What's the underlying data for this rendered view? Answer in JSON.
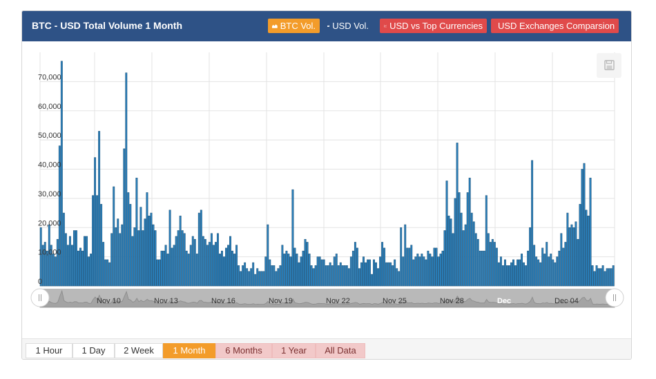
{
  "panel": {
    "title": "BTC - USD Total Volume 1 Month",
    "header_buttons": [
      {
        "label": "BTC Vol.",
        "icon": "area-chart-icon",
        "color": "#f39c2a"
      },
      {
        "label": "USD Vol.",
        "icon": "area-chart-icon",
        "color": "transparent"
      },
      {
        "label": "USD vs Top Currencies",
        "icon": "line-chart-icon",
        "color": "#e04a4a"
      },
      {
        "label": "USD Exchanges Comparsion",
        "icon": "bar-chart-icon",
        "color": "#e04a4a"
      }
    ]
  },
  "range_buttons": [
    "1 Hour",
    "1 Day",
    "2 Week",
    "1 Month",
    "6 Months",
    "1 Year",
    "All Data"
  ],
  "active_range": "1 Month",
  "colors": {
    "header": "#2e5286",
    "bar_fill": "#2a7fba",
    "bar_stroke": "#1d4f73",
    "active": "#f39c2a",
    "red": "#e04a4a",
    "pink": "#f2c9c9"
  },
  "chart_data": {
    "type": "bar",
    "title": "",
    "xlabel": "",
    "ylabel": "",
    "ylim": [
      0,
      80000
    ],
    "yticks": [
      0,
      10000,
      20000,
      30000,
      40000,
      50000,
      60000,
      70000
    ],
    "ytick_labels": [
      "0",
      "10,000",
      "20,000",
      "30,000",
      "40,000",
      "50,000",
      "60,000",
      "70,000"
    ],
    "xtick_labels": [
      "Nov 10",
      "Nov 13",
      "Nov 16",
      "Nov 19",
      "Nov 22",
      "Nov 25",
      "Nov 28",
      "Dec",
      "Dec 04"
    ],
    "grid": true,
    "values": [
      20000,
      14000,
      15000,
      12000,
      21000,
      14000,
      11000,
      10000,
      16000,
      48000,
      77000,
      25000,
      18000,
      14000,
      17000,
      14000,
      19000,
      19000,
      12000,
      13000,
      12000,
      17000,
      17000,
      10000,
      11000,
      31000,
      44000,
      31000,
      53000,
      28000,
      15000,
      9000,
      9000,
      8000,
      18000,
      34000,
      20000,
      23000,
      18000,
      21000,
      47000,
      73000,
      32000,
      28000,
      17000,
      20000,
      37000,
      19000,
      27000,
      19000,
      23000,
      32000,
      24000,
      25000,
      21000,
      19000,
      9000,
      9000,
      12000,
      12000,
      14000,
      11000,
      26000,
      13000,
      14000,
      17000,
      19000,
      24000,
      19000,
      18000,
      12000,
      11000,
      14000,
      17000,
      16000,
      11000,
      25000,
      26000,
      17000,
      16000,
      14000,
      15000,
      18000,
      14000,
      15000,
      18000,
      11000,
      12000,
      10000,
      13000,
      14000,
      17000,
      12000,
      11000,
      14000,
      7000,
      5000,
      7000,
      8000,
      6000,
      5000,
      6000,
      8000,
      4000,
      6000,
      5000,
      5000,
      5000,
      10000,
      21000,
      9000,
      7000,
      7000,
      5000,
      6000,
      7000,
      14000,
      11000,
      12000,
      11000,
      10000,
      33000,
      13000,
      11000,
      8000,
      10000,
      12000,
      16000,
      15000,
      11000,
      7000,
      6000,
      7000,
      10000,
      10000,
      9000,
      9000,
      7000,
      7000,
      8000,
      7000,
      10000,
      11000,
      7000,
      8000,
      7000,
      7000,
      7000,
      6000,
      10000,
      12000,
      15000,
      13000,
      6000,
      8000,
      10000,
      8000,
      9000,
      9000,
      4000,
      9000,
      8000,
      6000,
      10000,
      15000,
      13000,
      8000,
      8000,
      8000,
      7000,
      9000,
      6000,
      5000,
      20000,
      10000,
      21000,
      13000,
      13000,
      14000,
      9000,
      10000,
      11000,
      10000,
      11000,
      10000,
      9000,
      12000,
      11000,
      10000,
      13000,
      13000,
      10000,
      11000,
      12000,
      19000,
      36000,
      24000,
      23000,
      18000,
      30000,
      49000,
      32000,
      25000,
      19000,
      21000,
      32000,
      37000,
      25000,
      22000,
      18000,
      16000,
      12000,
      12000,
      12000,
      31000,
      18000,
      15000,
      16000,
      15000,
      13000,
      8000,
      10000,
      7000,
      9000,
      7000,
      7000,
      8000,
      9000,
      7000,
      9000,
      9000,
      11000,
      8000,
      7000,
      12000,
      20000,
      43000,
      14000,
      10000,
      9000,
      8000,
      13000,
      11000,
      15000,
      10000,
      11000,
      9000,
      8000,
      10000,
      12000,
      18000,
      13000,
      15000,
      25000,
      20000,
      21000,
      20000,
      22000,
      16000,
      28000,
      40000,
      42000,
      26000,
      24000,
      37000,
      7000,
      5000,
      7000,
      6000,
      6000,
      7000,
      5000,
      6000,
      6000,
      6000,
      7000
    ]
  }
}
